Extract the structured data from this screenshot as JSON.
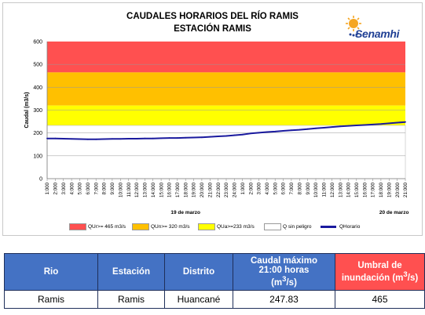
{
  "chart": {
    "title_line1": "CAUDALES HORARIOS DEL RÍO RAMIS",
    "title_line2": "ESTACIÓN RAMIS",
    "logo_text": "Senamhi",
    "ylabel": "Caudal (m3/s)",
    "day_labels": [
      "19 de marzo",
      "20 de marzo"
    ],
    "legend": {
      "red": "QUr>= 465 m3/s",
      "orange": "QUn>= 320 m3/s",
      "yellow": "QUa>=233 m3/s",
      "safe": "Q sin peligro",
      "hourly": "QHorario"
    },
    "colors": {
      "red": "#ff5050",
      "orange": "#ffc000",
      "yellow": "#ffff00",
      "safe": "#ffffff",
      "line": "#1a1a9e"
    }
  },
  "chart_data": {
    "type": "line",
    "title": "CAUDALES HORARIOS DEL RÍO RAMIS - ESTACIÓN RAMIS",
    "ylabel": "Caudal (m3/s)",
    "ylim": [
      0,
      600
    ],
    "yticks": [
      0,
      100,
      200,
      300,
      400,
      500,
      600
    ],
    "grid": true,
    "legend_position": "bottom",
    "x": [
      "1:000",
      "2:000",
      "3:000",
      "4:000",
      "5:000",
      "6:000",
      "7:000",
      "8:000",
      "9:000",
      "10:000",
      "11:000",
      "12:000",
      "13:000",
      "14:000",
      "15:000",
      "16:000",
      "17:000",
      "18:000",
      "19:000",
      "20:000",
      "21:000",
      "22:000",
      "23:000",
      "24:000",
      "1:000",
      "2:000",
      "3:000",
      "4:000",
      "5:000",
      "6:000",
      "7:000",
      "8:000",
      "9:000",
      "10:000",
      "11:000",
      "12:000",
      "13:000",
      "14:000",
      "15:000",
      "16:000",
      "17:000",
      "18:000",
      "19:000",
      "20:000",
      "21:000"
    ],
    "bands": [
      {
        "name": "QUr>= 465 m3/s",
        "from": 465,
        "to": 600
      },
      {
        "name": "QUn>= 320 m3/s",
        "from": 320,
        "to": 465
      },
      {
        "name": "QUa>=233 m3/s",
        "from": 233,
        "to": 320
      },
      {
        "name": "Q sin peligro",
        "from": 0,
        "to": 233
      }
    ],
    "series": [
      {
        "name": "QHorario",
        "values": [
          176,
          176,
          175,
          174,
          173,
          172,
          172,
          173,
          174,
          174,
          175,
          175,
          176,
          176,
          177,
          178,
          178,
          179,
          180,
          181,
          183,
          185,
          187,
          190,
          193,
          198,
          201,
          204,
          206,
          209,
          212,
          214,
          217,
          220,
          223,
          226,
          229,
          231,
          233,
          235,
          237,
          239,
          242,
          245,
          248
        ]
      }
    ]
  },
  "table": {
    "headers": [
      "Rio",
      "Estación",
      "Distrito",
      "Caudal máximo 21:00 horas (m3/s)",
      "Umbral de inundación (m3/s)"
    ],
    "header_caudal_line1": "Caudal máximo",
    "header_caudal_line2": "21:00 horas",
    "header_caudal_line3": "(m",
    "header_caudal_sup": "3",
    "header_caudal_line3_end": "/s)",
    "header_umbral_line1": "Umbral de",
    "header_umbral_line2": "inundación (m",
    "header_umbral_sup": "3",
    "header_umbral_end": "/s)",
    "row": [
      "Ramis",
      "Ramis",
      "Huancané",
      "247.83",
      "465"
    ]
  }
}
